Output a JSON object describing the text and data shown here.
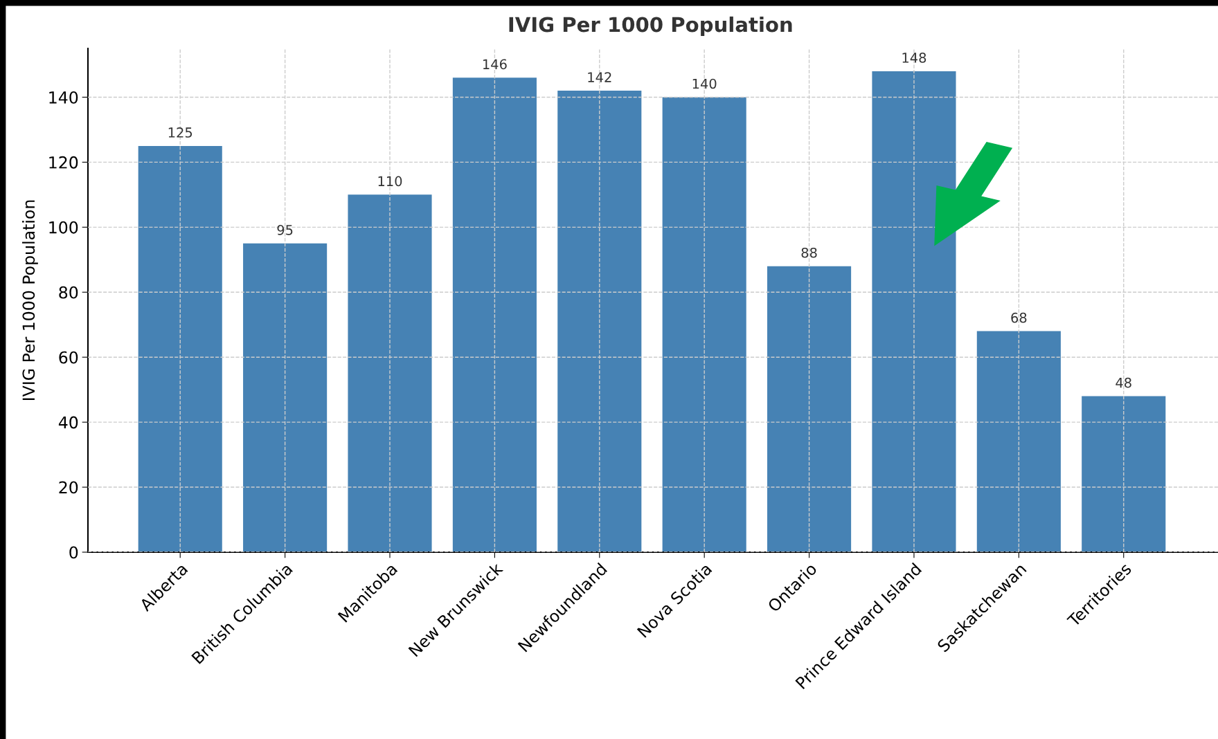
{
  "chart_data": {
    "type": "bar",
    "title": "IVIG Per 1000 Population",
    "ylabel": "IVIG Per 1000 Population",
    "categories": [
      "Alberta",
      "British Columbia",
      "Manitoba",
      "New Brunswick",
      "Newfoundland",
      "Nova Scotia",
      "Ontario",
      "Prince Edward Island",
      "Saskatchewan",
      "Territories"
    ],
    "values": [
      125,
      95,
      110,
      146,
      142,
      140,
      88,
      148,
      68,
      48
    ],
    "color": "#4682b4",
    "data_labels": true,
    "ylim": [
      0,
      155
    ],
    "yticks": [
      0,
      20,
      40,
      60,
      80,
      100,
      120,
      140
    ],
    "grid": true,
    "legend": false
  }
}
